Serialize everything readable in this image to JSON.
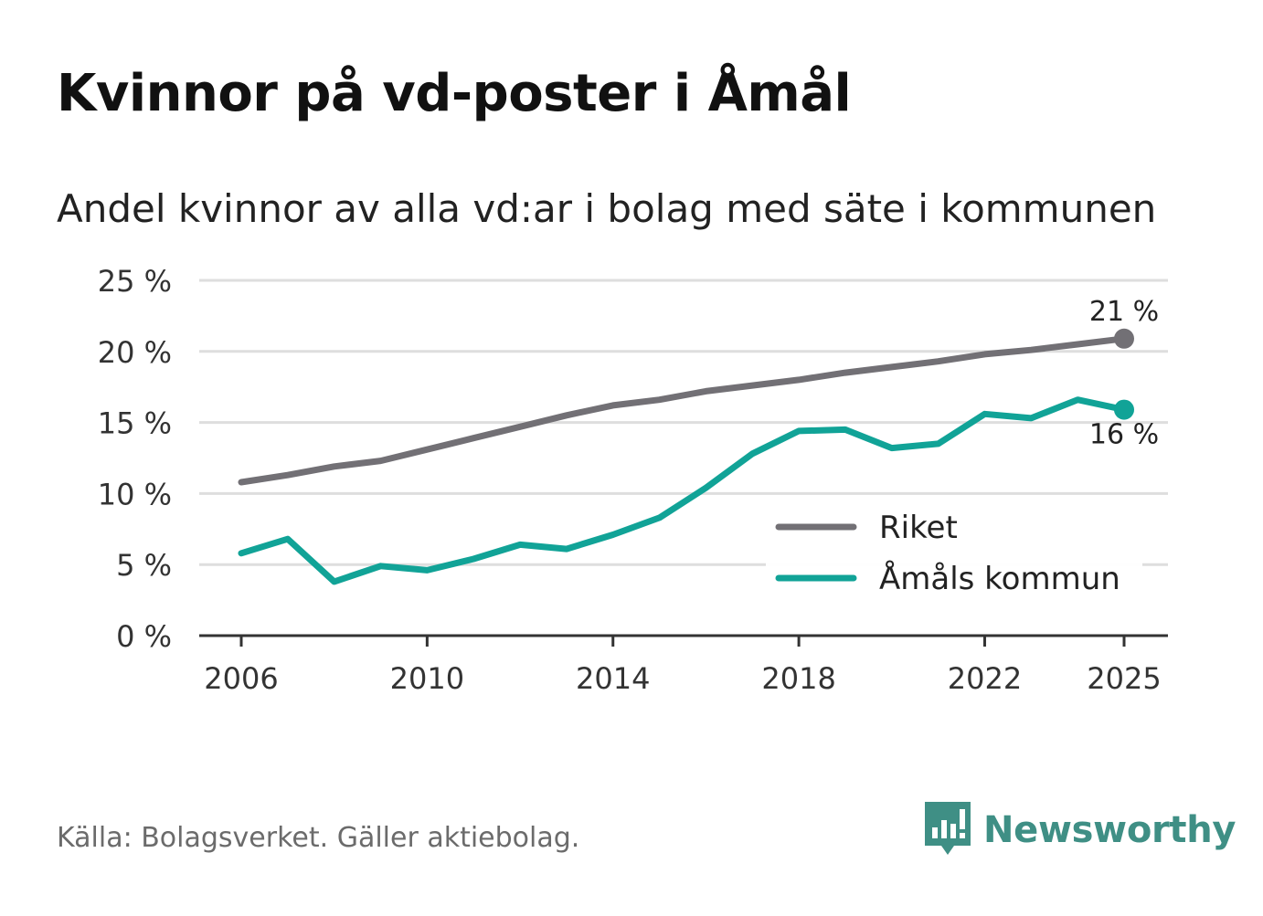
{
  "title": "Kvinnor på vd-poster i Åmål",
  "subtitle": "Andel kvinnor av alla vd:ar i bolag med säte i kommunen",
  "source": "Källa: Bolagsverket. Gäller aktiebolag.",
  "brand": {
    "name": "Newsworthy",
    "icon": "newsworthy-logo-icon"
  },
  "colors": {
    "riket": "#727075",
    "amal": "#11a397",
    "grid": "#dedede",
    "axis": "#333333"
  },
  "chart_data": {
    "type": "line",
    "title": "Kvinnor på vd-poster i Åmål",
    "subtitle": "Andel kvinnor av alla vd:ar i bolag med säte i kommunen",
    "xlabel": "",
    "ylabel": "",
    "x": [
      2006,
      2007,
      2008,
      2009,
      2010,
      2011,
      2012,
      2013,
      2014,
      2015,
      2016,
      2017,
      2018,
      2019,
      2020,
      2021,
      2022,
      2023,
      2024,
      2025
    ],
    "xticks": [
      2006,
      2010,
      2014,
      2018,
      2022,
      2025
    ],
    "yticks": [
      0,
      5,
      10,
      15,
      20,
      25
    ],
    "ytick_labels": [
      "0 %",
      "5 %",
      "10 %",
      "15 %",
      "20 %",
      "25 %"
    ],
    "ylim": [
      0,
      25
    ],
    "grid": true,
    "legend_position": "bottom-right",
    "series": [
      {
        "key": "riket",
        "name": "Riket",
        "values": [
          10.8,
          11.3,
          11.9,
          12.3,
          13.1,
          13.9,
          14.7,
          15.5,
          16.2,
          16.6,
          17.2,
          17.6,
          18.0,
          18.5,
          18.9,
          19.3,
          19.8,
          20.1,
          20.5,
          20.9
        ],
        "end_label": "21 %"
      },
      {
        "key": "amal",
        "name": "Åmåls kommun",
        "values": [
          5.8,
          6.8,
          3.8,
          4.9,
          4.6,
          5.4,
          6.4,
          6.1,
          7.1,
          8.3,
          10.4,
          12.8,
          14.4,
          14.5,
          13.2,
          13.5,
          15.6,
          15.3,
          16.6,
          15.9
        ],
        "end_label": "16 %"
      }
    ]
  }
}
